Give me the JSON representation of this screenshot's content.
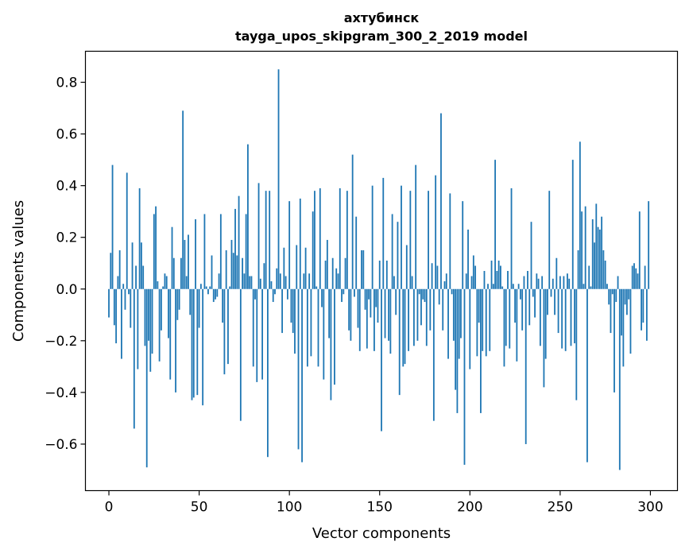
{
  "chart_data": {
    "type": "bar",
    "title": "ахтубинск",
    "subtitle": "tayga_upos_skipgram_300_2_2019 model",
    "xlabel": "Vector components",
    "ylabel": "Components values",
    "xlim": [
      -13,
      315
    ],
    "ylim": [
      -0.78,
      0.92
    ],
    "xticks": [
      0,
      50,
      100,
      150,
      200,
      250,
      300
    ],
    "xtick_labels": [
      "0",
      "50",
      "100",
      "150",
      "200",
      "250",
      "300"
    ],
    "yticks": [
      -0.6,
      -0.4,
      -0.2,
      0.0,
      0.2,
      0.4,
      0.6,
      0.8
    ],
    "ytick_labels": [
      "−0.6",
      "−0.4",
      "−0.2",
      "0.0",
      "0.2",
      "0.4",
      "0.6",
      "0.8"
    ],
    "grid": false,
    "bar_color": "#1f77b4",
    "values": [
      -0.11,
      0.14,
      0.48,
      -0.14,
      -0.21,
      0.05,
      0.15,
      -0.27,
      0.02,
      -0.08,
      0.45,
      -0.02,
      -0.15,
      0.18,
      -0.54,
      0.09,
      -0.31,
      0.39,
      0.18,
      0.09,
      -0.22,
      -0.69,
      -0.2,
      -0.32,
      -0.25,
      0.29,
      0.32,
      0.03,
      -0.28,
      -0.16,
      0.01,
      0.06,
      0.05,
      -0.19,
      -0.35,
      0.24,
      0.12,
      -0.4,
      -0.12,
      -0.08,
      0.12,
      0.69,
      0.19,
      0.05,
      0.21,
      -0.1,
      -0.43,
      -0.42,
      0.27,
      -0.41,
      -0.15,
      0.02,
      -0.45,
      0.29,
      0.01,
      -0.02,
      0.01,
      0.13,
      -0.05,
      -0.04,
      -0.03,
      0.06,
      0.29,
      -0.13,
      -0.33,
      0.15,
      -0.29,
      0.01,
      0.19,
      0.14,
      0.31,
      0.13,
      0.36,
      -0.51,
      0.12,
      0.06,
      0.29,
      0.56,
      0.05,
      0.05,
      -0.3,
      -0.04,
      -0.36,
      0.41,
      0.04,
      -0.35,
      0.1,
      0.38,
      -0.65,
      0.38,
      0.03,
      -0.05,
      -0.02,
      0.08,
      0.85,
      0.06,
      -0.17,
      0.16,
      0.05,
      -0.04,
      0.34,
      -0.13,
      -0.17,
      -0.25,
      0.17,
      -0.62,
      0.35,
      -0.67,
      0.06,
      0.16,
      -0.3,
      0.06,
      -0.26,
      0.3,
      0.38,
      0.01,
      -0.3,
      0.39,
      -0.07,
      -0.35,
      0.11,
      0.19,
      -0.19,
      -0.43,
      0.12,
      -0.37,
      0.08,
      0.06,
      0.39,
      -0.05,
      -0.02,
      0.12,
      0.38,
      -0.16,
      -0.2,
      0.52,
      -0.03,
      0.28,
      -0.15,
      -0.24,
      0.15,
      0.15,
      -0.08,
      -0.23,
      -0.04,
      -0.11,
      0.4,
      -0.24,
      -0.07,
      -0.13,
      0.11,
      -0.55,
      0.43,
      -0.19,
      0.11,
      -0.2,
      -0.25,
      0.29,
      0.05,
      -0.1,
      0.26,
      -0.41,
      0.4,
      -0.3,
      -0.29,
      0.17,
      -0.24,
      0.38,
      0.05,
      -0.22,
      0.48,
      -0.2,
      -0.02,
      -0.14,
      -0.04,
      -0.05,
      -0.22,
      0.38,
      -0.16,
      0.1,
      -0.51,
      0.44,
      0.09,
      -0.06,
      0.68,
      -0.16,
      0.03,
      0.06,
      -0.27,
      0.37,
      -0.02,
      -0.2,
      -0.39,
      -0.48,
      -0.27,
      -0.19,
      0.34,
      -0.68,
      0.06,
      0.23,
      -0.31,
      0.05,
      0.13,
      0.09,
      -0.26,
      -0.13,
      -0.48,
      -0.24,
      0.07,
      -0.26,
      0.02,
      -0.24,
      0.11,
      0.02,
      0.5,
      0.07,
      0.11,
      0.09,
      0.01,
      -0.3,
      -0.22,
      0.07,
      -0.23,
      0.39,
      0.02,
      -0.13,
      -0.28,
      0.02,
      -0.04,
      -0.16,
      0.05,
      -0.6,
      0.07,
      -0.14,
      0.26,
      -0.03,
      -0.11,
      0.06,
      0.04,
      -0.22,
      0.05,
      -0.38,
      -0.27,
      -0.1,
      0.38,
      -0.03,
      0.04,
      -0.1,
      0.12,
      -0.17,
      0.05,
      -0.23,
      0.05,
      -0.24,
      0.06,
      0.04,
      -0.22,
      0.5,
      -0.21,
      -0.43,
      0.15,
      0.57,
      0.3,
      0.02,
      0.32,
      -0.67,
      0.09,
      0.01,
      0.27,
      0.18,
      0.33,
      0.24,
      0.23,
      0.28,
      0.15,
      0.11,
      0.02,
      -0.06,
      -0.17,
      -0.02,
      -0.4,
      -0.05,
      0.05,
      -0.7,
      -0.18,
      -0.3,
      -0.06,
      -0.1,
      -0.04,
      -0.25,
      0.09,
      0.1,
      0.08,
      0.06,
      0.3,
      -0.16,
      -0.13,
      0.09,
      -0.2,
      0.34
    ]
  }
}
